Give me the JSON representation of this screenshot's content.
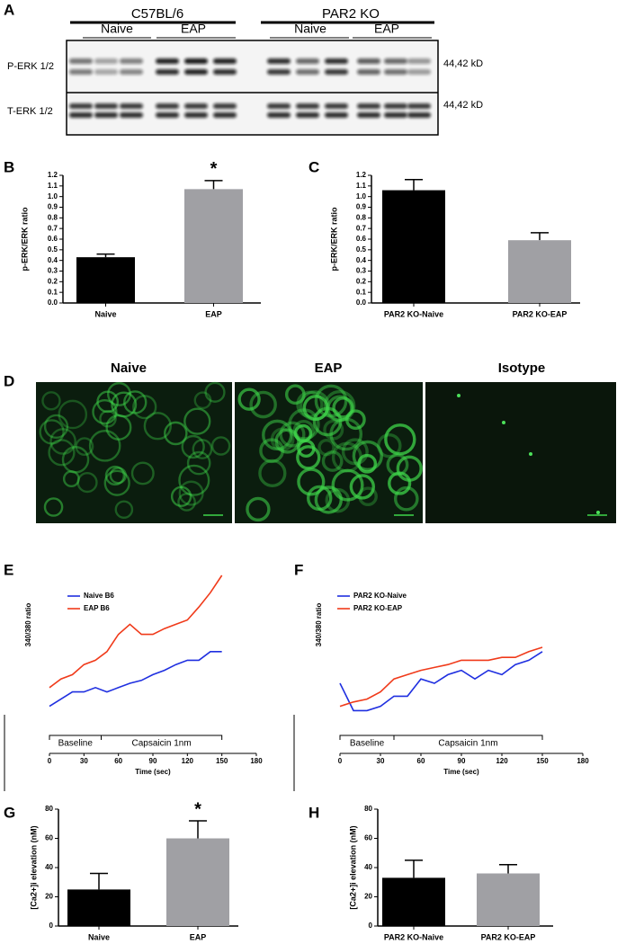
{
  "blot": {
    "letter": "A",
    "group_labels": [
      "C57BL/6",
      "PAR2 KO"
    ],
    "condition_labels": [
      "Naive",
      "EAP",
      "Naive",
      "EAP"
    ],
    "row_labels": [
      "P-ERK 1/2",
      "T-ERK 1/2"
    ],
    "size_labels": [
      "44,42 kD",
      "44,42 kD"
    ]
  },
  "images": {
    "letter": "D",
    "titles": [
      "Naive",
      "EAP",
      "Isotype"
    ]
  },
  "chart_data": [
    {
      "type": "bar",
      "panel": "B",
      "ylabel": "p-ERK/ERK ratio",
      "categories": [
        "Naive",
        "EAP"
      ],
      "values": [
        0.43,
        1.07
      ],
      "errors": [
        0.03,
        0.08
      ],
      "colors": [
        "#000000",
        "#a0a0a4"
      ],
      "ylim": [
        0,
        1.2
      ],
      "yticks": [
        {
          "value": 0,
          "label": "0.0"
        },
        0.1,
        0.2,
        0.3,
        0.4,
        0.5,
        0.6,
        0.7,
        0.8,
        0.9,
        {
          "value": 1,
          "label": "1.0"
        },
        1.1,
        1.2
      ],
      "annotations": [
        {
          "text": "*",
          "category": "EAP"
        }
      ]
    },
    {
      "type": "bar",
      "panel": "C",
      "ylabel": "p-ERK/ERK ratio",
      "categories": [
        "PAR2 KO-Naive",
        "PAR2 KO-EAP"
      ],
      "values": [
        1.06,
        0.59
      ],
      "errors": [
        0.1,
        0.07
      ],
      "colors": [
        "#000000",
        "#a0a0a4"
      ],
      "ylim": [
        0,
        1.2
      ],
      "yticks": [
        {
          "value": 0,
          "label": "0.0"
        },
        0.1,
        0.2,
        0.3,
        0.4,
        0.5,
        0.6,
        0.7,
        0.8,
        0.9,
        {
          "value": 1,
          "label": "1.0"
        },
        1.1,
        1.2
      ]
    },
    {
      "type": "line",
      "panel": "E",
      "ylabel": "340/380 ratio",
      "xlabel": "Time (sec)",
      "x": [
        0,
        10,
        20,
        30,
        40,
        50,
        60,
        70,
        80,
        90,
        100,
        110,
        120,
        130,
        140,
        150
      ],
      "series": [
        {
          "name": "Naive B6",
          "color": "#1f2fe0",
          "values": [
            0.09,
            0.14,
            0.19,
            0.19,
            0.22,
            0.19,
            0.22,
            0.25,
            0.27,
            0.31,
            0.34,
            0.38,
            0.41,
            0.41,
            0.47,
            0.47
          ]
        },
        {
          "name": "EAP B6",
          "color": "#f03a1a",
          "values": [
            0.22,
            0.28,
            0.31,
            0.38,
            0.41,
            0.47,
            0.59,
            0.66,
            0.59,
            0.59,
            0.63,
            0.66,
            0.69,
            0.78,
            0.88,
            1.0
          ]
        }
      ],
      "xlim": [
        0,
        180
      ],
      "xticks": [
        0,
        30,
        60,
        90,
        120,
        150,
        180
      ],
      "ylim": [
        0,
        1
      ],
      "annotations": [
        {
          "text": "Baseline",
          "x": [
            0,
            45
          ]
        },
        {
          "text": "Capsaicin 1nm",
          "x": [
            45,
            150
          ]
        }
      ]
    },
    {
      "type": "line",
      "panel": "F",
      "ylabel": "340/380 ratio",
      "xlabel": "Time (sec)",
      "x": [
        0,
        10,
        20,
        30,
        40,
        50,
        60,
        70,
        80,
        90,
        100,
        110,
        120,
        130,
        140,
        150
      ],
      "series": [
        {
          "name": "PAR2 KO-Naive",
          "color": "#1f2fe0",
          "values": [
            0.25,
            0.06,
            0.06,
            0.09,
            0.16,
            0.16,
            0.28,
            0.25,
            0.31,
            0.34,
            0.28,
            0.34,
            0.31,
            0.38,
            0.41,
            0.47
          ]
        },
        {
          "name": "PAR2 KO-EAP",
          "color": "#f03a1a",
          "values": [
            0.09,
            0.12,
            0.14,
            0.19,
            0.28,
            0.31,
            0.34,
            0.36,
            0.38,
            0.41,
            0.41,
            0.41,
            0.43,
            0.43,
            0.47,
            0.5
          ]
        }
      ],
      "xlim": [
        0,
        180
      ],
      "xticks": [
        0,
        30,
        60,
        90,
        120,
        150,
        180
      ],
      "ylim": [
        0,
        1
      ],
      "annotations": [
        {
          "text": "Baseline",
          "x": [
            0,
            40
          ]
        },
        {
          "text": "Capsaicin 1nm",
          "x": [
            40,
            150
          ]
        }
      ]
    },
    {
      "type": "bar",
      "panel": "G",
      "ylabel": "[Ca2+]i elevation (nM)",
      "categories": [
        "Naive",
        "EAP"
      ],
      "values": [
        25,
        60
      ],
      "errors": [
        11,
        12
      ],
      "colors": [
        "#000000",
        "#a0a0a4"
      ],
      "ylim": [
        0,
        80
      ],
      "yticks": [
        0,
        20,
        40,
        60,
        80
      ],
      "annotations": [
        {
          "text": "*",
          "category": "EAP"
        }
      ]
    },
    {
      "type": "bar",
      "panel": "H",
      "ylabel": "[Ca2+]i elevation (nM)",
      "categories": [
        "PAR2 KO-Naive",
        "PAR2 KO-EAP"
      ],
      "values": [
        33,
        36
      ],
      "errors": [
        12,
        6
      ],
      "colors": [
        "#000000",
        "#a0a0a4"
      ],
      "ylim": [
        0,
        80
      ],
      "yticks": [
        0,
        20,
        40,
        60,
        80
      ]
    }
  ]
}
